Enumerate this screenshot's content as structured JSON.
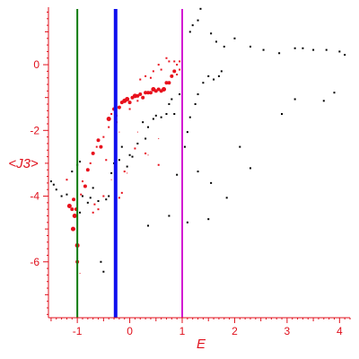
{
  "chart_data": {
    "type": "scatter",
    "title": "",
    "xlabel": "E",
    "ylabel": "<J3>",
    "xlim": [
      -1.55,
      4.2
    ],
    "ylim": [
      -7.7,
      1.75
    ],
    "x_ticks": [
      -1,
      0,
      1,
      2,
      3,
      4
    ],
    "y_ticks": [
      0,
      -2,
      -4,
      -6
    ],
    "grid": false,
    "legend": "none",
    "colors": {
      "axes": "#e0101c",
      "series_red": "#e8101c",
      "series_black": "#000000",
      "line_green": "#0a7a0a",
      "line_blue": "#1010ee",
      "line_magenta": "#d21ad2"
    },
    "vertical_lines": [
      {
        "x": -1.0,
        "color": "#0a7a0a"
      },
      {
        "x": -0.27,
        "color": "#1010ee"
      },
      {
        "x": 1.0,
        "color": "#d21ad2"
      }
    ],
    "series": [
      {
        "color": "#e8101c",
        "points": [
          [
            -1.2,
            -3.5,
            2
          ],
          [
            -1.15,
            -4.3,
            4
          ],
          [
            -1.1,
            -4.4,
            3
          ],
          [
            -1.07,
            -4.1,
            3
          ],
          [
            -1.05,
            -4.6,
            4
          ],
          [
            -1.08,
            -5.0,
            4
          ],
          [
            -1.02,
            -4.4,
            3
          ],
          [
            -1.0,
            -5.5,
            4
          ],
          [
            -1.0,
            -6.0,
            3
          ],
          [
            -0.95,
            -6.35,
            1
          ],
          [
            -0.93,
            -3.95,
            2
          ],
          [
            -0.9,
            -3.55,
            2
          ],
          [
            -0.85,
            -3.7,
            3
          ],
          [
            -0.8,
            -3.2,
            3
          ],
          [
            -0.75,
            -3.0,
            2
          ],
          [
            -0.7,
            -2.7,
            3
          ],
          [
            -0.67,
            -4.25,
            2
          ],
          [
            -0.63,
            -2.5,
            2
          ],
          [
            -0.6,
            -2.3,
            3
          ],
          [
            -0.55,
            -2.5,
            3
          ],
          [
            -0.5,
            -2.2,
            2
          ],
          [
            -0.45,
            -2.9,
            2
          ],
          [
            -0.4,
            -1.9,
            2
          ],
          [
            -0.4,
            -1.65,
            4
          ],
          [
            -0.35,
            -3.5,
            1
          ],
          [
            -0.35,
            -1.5,
            2
          ],
          [
            -0.3,
            -1.35,
            3
          ],
          [
            -0.25,
            -1.55,
            2
          ],
          [
            -0.2,
            -1.3,
            3
          ],
          [
            -0.15,
            -1.15,
            3
          ],
          [
            -0.1,
            -1.1,
            4
          ],
          [
            -0.05,
            -1.05,
            4
          ],
          [
            0.0,
            -1.15,
            3
          ],
          [
            0.05,
            -1.0,
            3
          ],
          [
            0.1,
            -0.95,
            4
          ],
          [
            0.15,
            -0.95,
            3
          ],
          [
            0.2,
            -0.9,
            3
          ],
          [
            0.25,
            -1.0,
            3
          ],
          [
            0.3,
            -0.85,
            3
          ],
          [
            0.35,
            -0.85,
            3
          ],
          [
            0.4,
            -0.85,
            3
          ],
          [
            0.45,
            -0.75,
            4
          ],
          [
            0.5,
            -0.8,
            3
          ],
          [
            0.55,
            -0.75,
            3
          ],
          [
            0.6,
            -0.8,
            3
          ],
          [
            0.65,
            -0.75,
            4
          ],
          [
            0.7,
            -0.55,
            3
          ],
          [
            0.75,
            -0.55,
            3
          ],
          [
            0.8,
            -0.35,
            3
          ],
          [
            0.85,
            -0.2,
            3
          ],
          [
            0.9,
            -0.3,
            2
          ],
          [
            0.95,
            -0.15,
            2
          ],
          [
            0.55,
            0.0,
            2
          ],
          [
            0.6,
            -0.15,
            2
          ],
          [
            0.7,
            0.2,
            2
          ],
          [
            0.75,
            0.1,
            2
          ],
          [
            0.85,
            0.1,
            2
          ],
          [
            0.9,
            0.0,
            2
          ],
          [
            0.95,
            0.1,
            2
          ],
          [
            0.2,
            -0.45,
            2
          ],
          [
            0.3,
            -0.35,
            2
          ],
          [
            0.4,
            -0.4,
            2
          ],
          [
            0.45,
            -0.2,
            2
          ],
          [
            0.3,
            -2.7,
            2
          ],
          [
            0.35,
            -2.75,
            1
          ],
          [
            0.55,
            -3.05,
            2
          ],
          [
            -0.1,
            -3.25,
            2
          ],
          [
            -0.05,
            -3.3,
            1
          ],
          [
            -0.6,
            -4.4,
            2
          ],
          [
            -0.7,
            -4.5,
            2
          ],
          [
            -0.5,
            -4.0,
            2
          ],
          [
            -0.2,
            -4.05,
            2
          ],
          [
            -0.15,
            -3.9,
            2
          ],
          [
            0.1,
            -2.55,
            2
          ],
          [
            -0.25,
            -1.75,
            2
          ],
          [
            -0.2,
            -2.05,
            1
          ],
          [
            0.15,
            -1.1,
            2
          ],
          [
            0.0,
            -1.35,
            2
          ],
          [
            0.15,
            -2.05,
            1
          ],
          [
            0.55,
            -2.25,
            1
          ]
        ]
      },
      {
        "color": "#000000",
        "points": [
          [
            -1.5,
            -3.55
          ],
          [
            -1.45,
            -3.65
          ],
          [
            -1.4,
            -3.8
          ],
          [
            -1.3,
            -4.0
          ],
          [
            -1.2,
            -3.95
          ],
          [
            -1.1,
            -3.25
          ],
          [
            -1.0,
            -3.05
          ],
          [
            -0.95,
            -2.95
          ],
          [
            -0.9,
            -4.0
          ],
          [
            -0.95,
            -4.5
          ],
          [
            -0.8,
            -4.2
          ],
          [
            -0.75,
            -4.05
          ],
          [
            -0.7,
            -3.75
          ],
          [
            -0.6,
            -4.15
          ],
          [
            -0.55,
            -6.0
          ],
          [
            -0.5,
            -6.3
          ],
          [
            -0.45,
            -4.1
          ],
          [
            -0.4,
            -4.0
          ],
          [
            -0.35,
            -3.3
          ],
          [
            -0.3,
            -3.0
          ],
          [
            -0.2,
            -2.9
          ],
          [
            -0.15,
            -2.5
          ],
          [
            -0.05,
            -3.1
          ],
          [
            0.0,
            -2.75
          ],
          [
            0.05,
            -2.8
          ],
          [
            0.15,
            -2.4
          ],
          [
            0.25,
            -1.75
          ],
          [
            0.3,
            -2.25
          ],
          [
            0.35,
            -1.9
          ],
          [
            0.45,
            -1.65
          ],
          [
            0.5,
            -1.55
          ],
          [
            0.6,
            -1.6
          ],
          [
            0.7,
            -1.5
          ],
          [
            0.75,
            -1.2
          ],
          [
            0.8,
            -1.05
          ],
          [
            0.85,
            -1.5
          ],
          [
            0.95,
            -0.9
          ],
          [
            0.35,
            -4.9
          ],
          [
            0.75,
            -4.6
          ],
          [
            1.1,
            -4.8
          ],
          [
            0.9,
            -3.35
          ],
          [
            1.05,
            -2.5
          ],
          [
            1.1,
            -2.05
          ],
          [
            1.15,
            -1.6
          ],
          [
            1.25,
            -1.2
          ],
          [
            1.3,
            -0.9
          ],
          [
            1.4,
            -0.55
          ],
          [
            1.5,
            -0.35
          ],
          [
            1.6,
            -0.45
          ],
          [
            1.7,
            -0.35
          ],
          [
            1.75,
            -0.2
          ],
          [
            1.3,
            -3.25
          ],
          [
            1.5,
            -4.7
          ],
          [
            1.55,
            -3.6
          ],
          [
            1.85,
            -4.05
          ],
          [
            2.3,
            -3.15
          ],
          [
            2.1,
            -2.5
          ],
          [
            2.9,
            -1.5
          ],
          [
            3.15,
            -1.05
          ],
          [
            3.7,
            -1.1
          ],
          [
            3.9,
            -0.85
          ],
          [
            1.15,
            1.0
          ],
          [
            1.2,
            1.2
          ],
          [
            1.3,
            1.35
          ],
          [
            1.35,
            1.7
          ],
          [
            1.55,
            0.95
          ],
          [
            1.65,
            0.7
          ],
          [
            1.8,
            0.55
          ],
          [
            2.0,
            0.8
          ],
          [
            2.3,
            0.55
          ],
          [
            2.55,
            0.45
          ],
          [
            2.85,
            0.35
          ],
          [
            3.15,
            0.5
          ],
          [
            3.5,
            0.45
          ],
          [
            3.75,
            0.45
          ],
          [
            4.0,
            0.4
          ],
          [
            4.1,
            0.3
          ],
          [
            3.3,
            0.5
          ]
        ]
      }
    ]
  }
}
